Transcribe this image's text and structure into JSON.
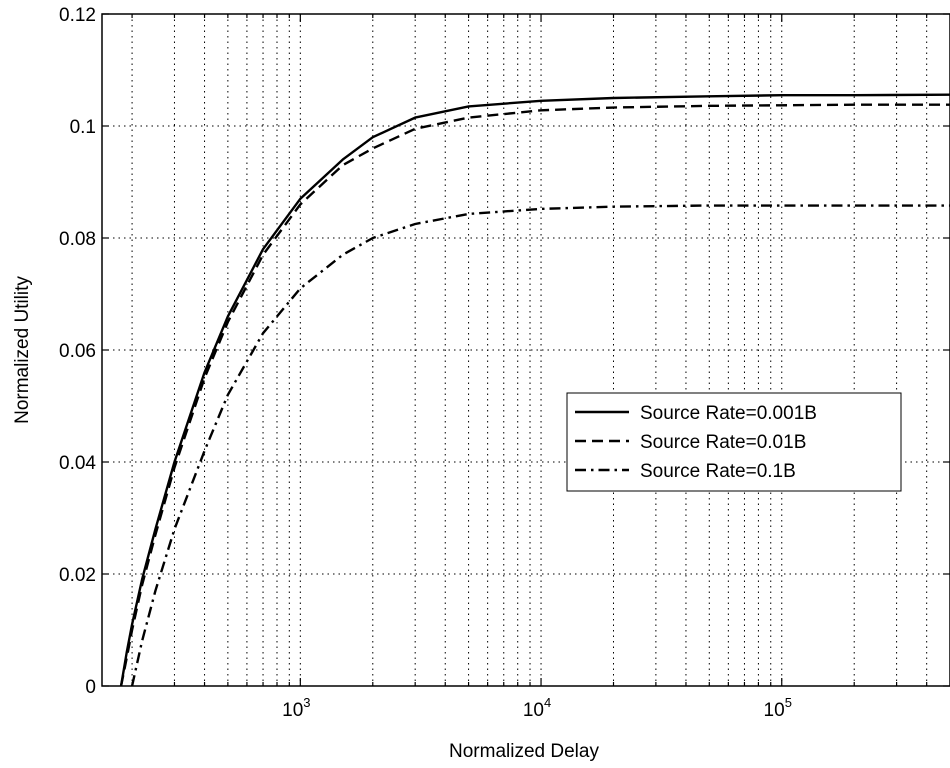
{
  "chart_data": {
    "type": "line",
    "title": "",
    "xlabel": "Normalized Delay",
    "ylabel": "Normalized Utility",
    "xscale": "log",
    "xlim": [
      150,
      500000
    ],
    "ylim": [
      0,
      0.12
    ],
    "grid": true,
    "legend_position": "center-right",
    "x_tick_labels": [
      {
        "value": 1000,
        "base": "10",
        "exp": "3"
      },
      {
        "value": 10000,
        "base": "10",
        "exp": "4"
      },
      {
        "value": 100000,
        "base": "10",
        "exp": "5"
      }
    ],
    "y_tick_labels": [
      "0",
      "0.02",
      "0.04",
      "0.06",
      "0.08",
      "0.1",
      "0.12"
    ],
    "y_tick_values": [
      0,
      0.02,
      0.04,
      0.06,
      0.08,
      0.1,
      0.12
    ],
    "series": [
      {
        "name": "Source Rate=0.001B",
        "dash": "solid",
        "x": [
          180,
          190,
          200,
          220,
          250,
          300,
          400,
          500,
          700,
          1000,
          1500,
          2000,
          3000,
          5000,
          10000,
          20000,
          50000,
          100000,
          200000,
          500000
        ],
        "y": [
          0,
          0.006,
          0.011,
          0.019,
          0.028,
          0.04,
          0.056,
          0.066,
          0.078,
          0.087,
          0.094,
          0.098,
          0.1015,
          0.1035,
          0.1045,
          0.105,
          0.1053,
          0.1055,
          0.1055,
          0.1056
        ]
      },
      {
        "name": "Source Rate=0.01B",
        "dash": "dashed",
        "x": [
          180,
          190,
          200,
          220,
          250,
          300,
          400,
          500,
          700,
          1000,
          1500,
          2000,
          3000,
          5000,
          10000,
          20000,
          50000,
          100000,
          200000,
          500000
        ],
        "y": [
          0,
          0.005,
          0.01,
          0.018,
          0.027,
          0.039,
          0.055,
          0.065,
          0.077,
          0.086,
          0.093,
          0.096,
          0.0995,
          0.1015,
          0.1028,
          0.1033,
          0.1036,
          0.1037,
          0.1038,
          0.1038
        ]
      },
      {
        "name": "Source Rate=0.1B",
        "dash": "dashdot",
        "x": [
          200,
          220,
          250,
          300,
          400,
          500,
          700,
          1000,
          1500,
          2000,
          3000,
          5000,
          10000,
          20000,
          50000,
          100000,
          200000,
          500000
        ],
        "y": [
          0,
          0.008,
          0.017,
          0.028,
          0.042,
          0.052,
          0.063,
          0.071,
          0.077,
          0.08,
          0.0825,
          0.0843,
          0.0852,
          0.0856,
          0.0858,
          0.0858,
          0.0858,
          0.0858
        ]
      }
    ]
  }
}
